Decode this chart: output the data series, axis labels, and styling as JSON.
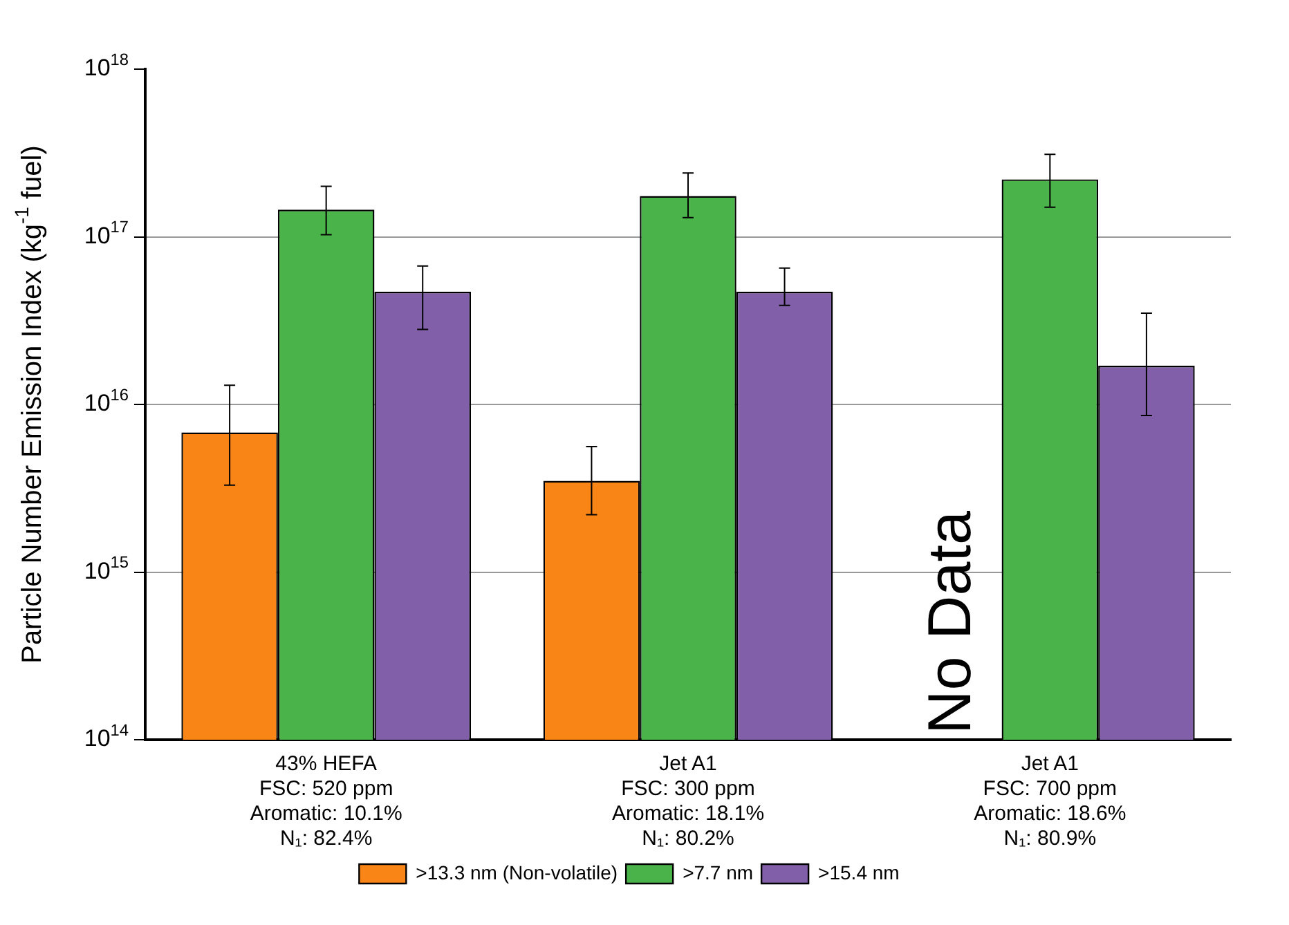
{
  "chart_data": {
    "type": "bar",
    "ylabel": "Particle Number Emission Index (kg$^{-1}$ fuel)",
    "categories": [
      "43% HEFA\nFSC: 520 ppm\nAromatic: 10.1%\nN₁: 82.4%",
      "Jet A1\nFSC: 300 ppm\nAromatic: 18.1%\nN₁: 80.2%",
      "Jet A1\nFSC: 700 ppm\nAromatic: 18.6%\nN₁: 80.9%"
    ],
    "series": [
      {
        "name": ">13.3 nm (Non-volatile)",
        "color": "#f98517",
        "values": [
          6800000000000000.0,
          3500000000000000.0,
          null
        ],
        "errors": [
          [
            3300000000000000.0,
            1.3e+16
          ],
          [
            2200000000000000.0,
            5600000000000000.0
          ],
          null
        ]
      },
      {
        "name": ">7.7 nm",
        "color": "#4ab34a",
        "values": [
          1.45e+17,
          1.75e+17,
          2.2e+17
        ],
        "errors": [
          [
            1.03e+17,
            2e+17
          ],
          [
            1.3e+17,
            2.4e+17
          ],
          [
            1.5e+17,
            3.1e+17
          ]
        ]
      },
      {
        "name": ">15.4 nm",
        "color": "#815fa9",
        "values": [
          4.7e+16,
          4.7e+16,
          1.7e+16
        ],
        "errors": [
          [
            2.8e+16,
            6.7e+16
          ],
          [
            3.9e+16,
            6.5e+16
          ],
          [
            8600000000000000.0,
            3.5e+16
          ]
        ]
      }
    ],
    "log": "y",
    "ylim": [
      100000000000000.0,
      1e+18
    ],
    "yticks": [
      {
        "value": 100000000000000.0,
        "label": "10$^{14}$"
      },
      {
        "value": 1000000000000000.0,
        "label": "10$^{15}$"
      },
      {
        "value": 1e+16,
        "label": "10$^{16}$"
      },
      {
        "value": 1e+17,
        "label": "10$^{17}$"
      },
      {
        "value": 1e+18,
        "label": "10$^{18}$"
      }
    ],
    "grid": "y",
    "legend": "bottom",
    "annotations": [
      "No Data"
    ]
  }
}
